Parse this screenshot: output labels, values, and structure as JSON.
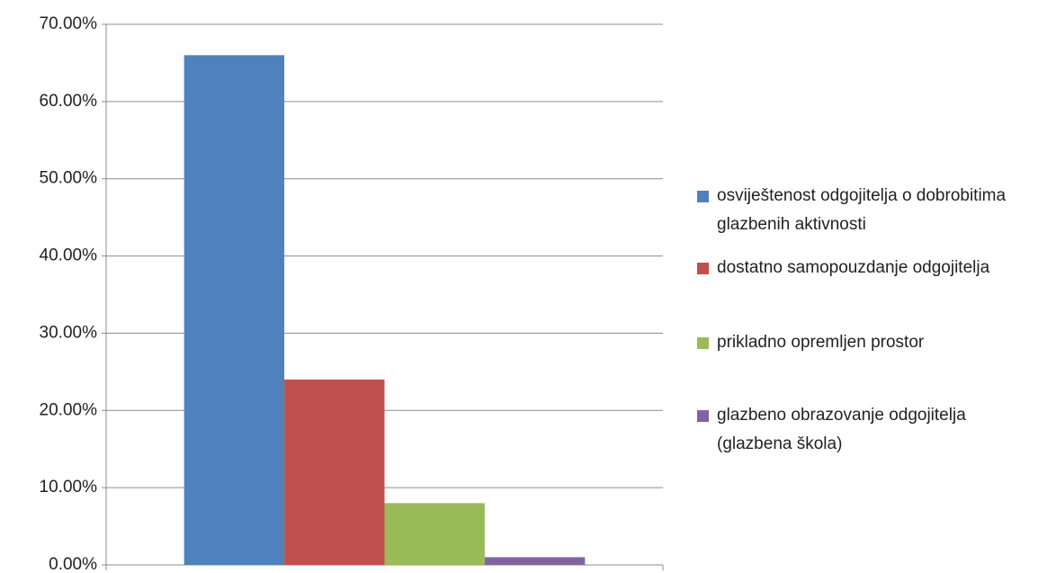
{
  "chart_data": {
    "type": "bar",
    "categories": [
      null
    ],
    "series": [
      {
        "name": "osviještenost odgojitelja o dobrobitima glazbenih aktivnosti",
        "color": "#4f81bd",
        "values": [
          66
        ]
      },
      {
        "name": "dostatno samopouzdanje odgojitelja",
        "color": "#c0504d",
        "values": [
          24
        ]
      },
      {
        "name": "prikladno opremljen prostor",
        "color": "#9bbb59",
        "values": [
          8
        ]
      },
      {
        "name": "glazbeno obrazovanje odgojitelja (glazbena škola)",
        "color": "#8064a2",
        "values": [
          1
        ]
      }
    ],
    "ylim": [
      0,
      70
    ],
    "yticks": [
      {
        "value": 0,
        "label": "0.00%"
      },
      {
        "value": 10,
        "label": "10.00%"
      },
      {
        "value": 20,
        "label": "20.00%"
      },
      {
        "value": 30,
        "label": "30.00%"
      },
      {
        "value": 40,
        "label": "40.00%"
      },
      {
        "value": 50,
        "label": "50.00%"
      },
      {
        "value": 60,
        "label": "60.00%"
      },
      {
        "value": 70,
        "label": "70.00%"
      }
    ],
    "grid": true,
    "legend": "right"
  }
}
